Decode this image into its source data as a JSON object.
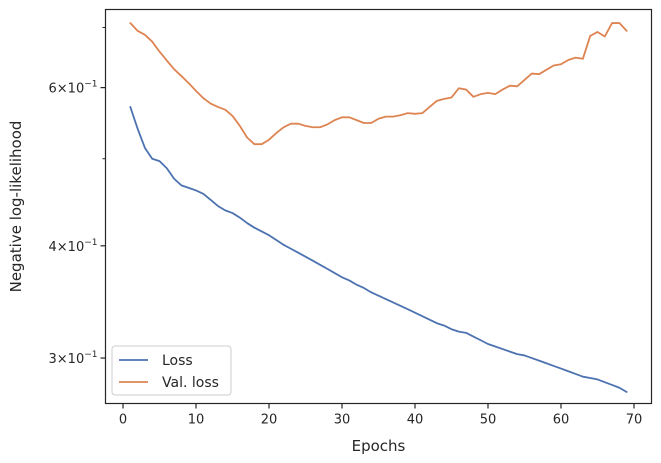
{
  "chart_data": {
    "type": "line",
    "xlabel": "Epochs",
    "ylabel": "Negative log-likelihood",
    "y_scale": "log",
    "xlim": [
      -2.4,
      72.4
    ],
    "ylim": [
      0.267,
      0.733
    ],
    "grid": false,
    "legend_position": "lower-left",
    "x_ticks": [
      {
        "value": 0,
        "label": "0"
      },
      {
        "value": 10,
        "label": "10"
      },
      {
        "value": 20,
        "label": "20"
      },
      {
        "value": 30,
        "label": "30"
      },
      {
        "value": 40,
        "label": "40"
      },
      {
        "value": 50,
        "label": "50"
      },
      {
        "value": 60,
        "label": "60"
      },
      {
        "value": 70,
        "label": "70"
      }
    ],
    "y_major_ticks": [
      {
        "value": 0.3,
        "base": "3",
        "exp": "−1"
      },
      {
        "value": 0.4,
        "base": "4",
        "exp": "−1"
      },
      {
        "value": 0.6,
        "base": "6",
        "exp": "−1"
      }
    ],
    "y_minor_ticks": [
      0.5,
      0.7
    ],
    "x": [
      1,
      2,
      3,
      4,
      5,
      6,
      7,
      8,
      9,
      10,
      11,
      12,
      13,
      14,
      15,
      16,
      17,
      18,
      19,
      20,
      21,
      22,
      23,
      24,
      25,
      26,
      27,
      28,
      29,
      30,
      31,
      32,
      33,
      34,
      35,
      36,
      37,
      38,
      39,
      40,
      41,
      42,
      43,
      44,
      45,
      46,
      47,
      48,
      49,
      50,
      51,
      52,
      53,
      54,
      55,
      56,
      57,
      58,
      59,
      60,
      61,
      62,
      63,
      64,
      65,
      66,
      67,
      68,
      69
    ],
    "series": [
      {
        "name": "Loss",
        "color": "#4c72b0",
        "values": [
          0.571,
          0.54,
          0.514,
          0.5,
          0.497,
          0.488,
          0.475,
          0.467,
          0.464,
          0.461,
          0.457,
          0.45,
          0.443,
          0.438,
          0.435,
          0.43,
          0.424,
          0.419,
          0.415,
          0.411,
          0.406,
          0.401,
          0.397,
          0.393,
          0.389,
          0.385,
          0.381,
          0.377,
          0.373,
          0.369,
          0.366,
          0.362,
          0.359,
          0.355,
          0.352,
          0.349,
          0.346,
          0.343,
          0.34,
          0.337,
          0.334,
          0.331,
          0.328,
          0.326,
          0.323,
          0.321,
          0.32,
          0.317,
          0.314,
          0.311,
          0.309,
          0.307,
          0.305,
          0.303,
          0.302,
          0.3,
          0.298,
          0.296,
          0.294,
          0.292,
          0.29,
          0.288,
          0.286,
          0.285,
          0.284,
          0.282,
          0.28,
          0.278,
          0.275
        ]
      },
      {
        "name": "Val. loss",
        "color": "#dd8452",
        "values": [
          0.708,
          0.694,
          0.687,
          0.675,
          0.658,
          0.643,
          0.629,
          0.618,
          0.607,
          0.595,
          0.584,
          0.576,
          0.571,
          0.567,
          0.558,
          0.544,
          0.528,
          0.519,
          0.519,
          0.525,
          0.534,
          0.542,
          0.547,
          0.547,
          0.544,
          0.542,
          0.542,
          0.546,
          0.552,
          0.556,
          0.556,
          0.552,
          0.548,
          0.548,
          0.554,
          0.557,
          0.557,
          0.559,
          0.562,
          0.561,
          0.562,
          0.571,
          0.58,
          0.583,
          0.585,
          0.599,
          0.597,
          0.586,
          0.59,
          0.592,
          0.59,
          0.597,
          0.603,
          0.602,
          0.612,
          0.622,
          0.621,
          0.628,
          0.635,
          0.637,
          0.644,
          0.648,
          0.646,
          0.685,
          0.692,
          0.684,
          0.708,
          0.708,
          0.694
        ]
      }
    ]
  }
}
